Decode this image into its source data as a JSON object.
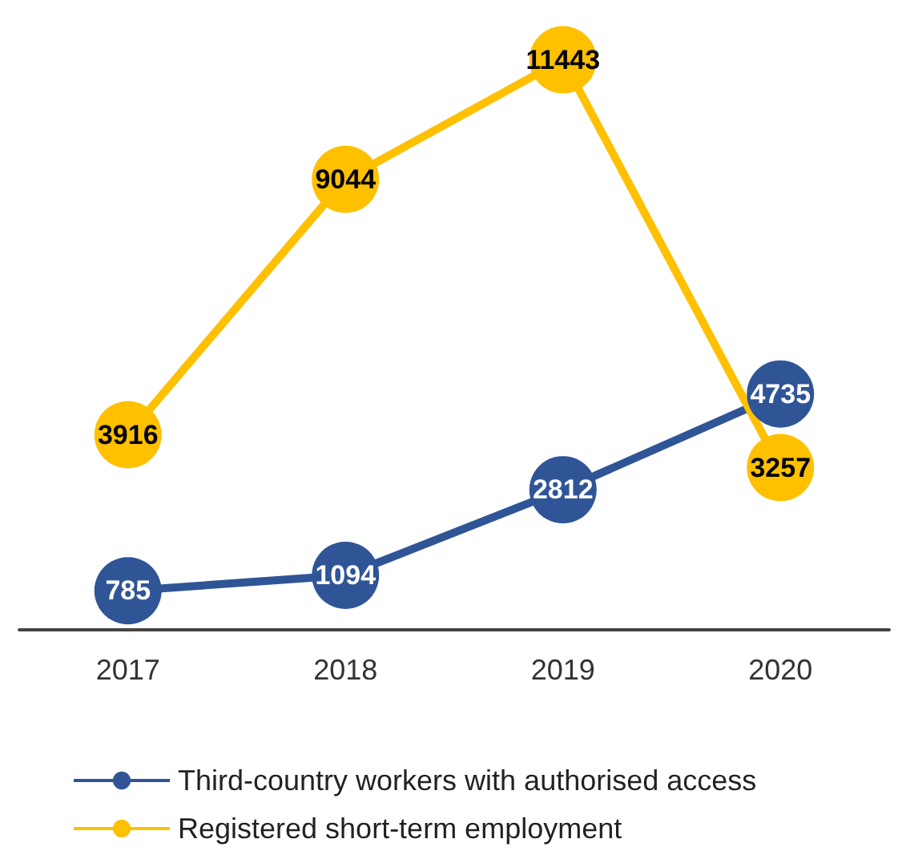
{
  "chart_data": {
    "type": "line",
    "categories": [
      "2017",
      "2018",
      "2019",
      "2020"
    ],
    "series": [
      {
        "name": "Third-country workers with authorised access",
        "color": "#2f5597",
        "values": [
          785,
          1094,
          2812,
          4735
        ]
      },
      {
        "name": "Registered short-term employment",
        "color": "#ffc000",
        "values": [
          3916,
          9044,
          11443,
          3257
        ]
      }
    ],
    "data_labels": true,
    "marker": "circle",
    "line_style": "solid",
    "legend": "bottom",
    "grid": false
  }
}
